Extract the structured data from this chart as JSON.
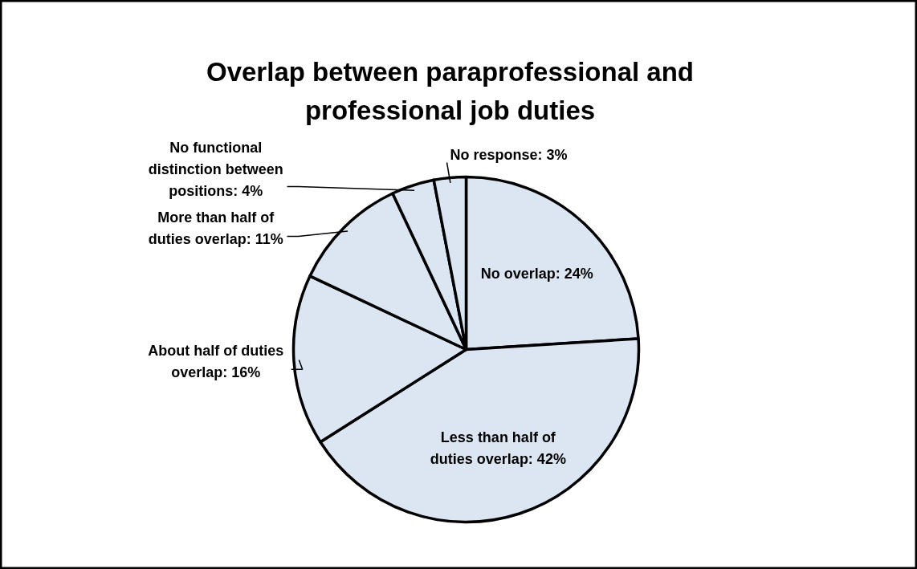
{
  "chart_data": {
    "type": "pie",
    "title": "Overlap between paraprofessional and professional job duties",
    "categories": [
      "No overlap",
      "Less than half of duties overlap",
      "About half of duties overlap",
      "More than half of duties overlap",
      "No functional distinction between positions",
      "No response"
    ],
    "values": [
      24,
      42,
      16,
      11,
      4,
      3
    ],
    "colors": [
      "#dce6f2",
      "#dce6f2",
      "#dce6f2",
      "#dce6f2",
      "#dce6f2",
      "#dce6f2"
    ],
    "value_labels": [
      "24%",
      "42%",
      "16%",
      "11%",
      "4%",
      "3%"
    ]
  }
}
